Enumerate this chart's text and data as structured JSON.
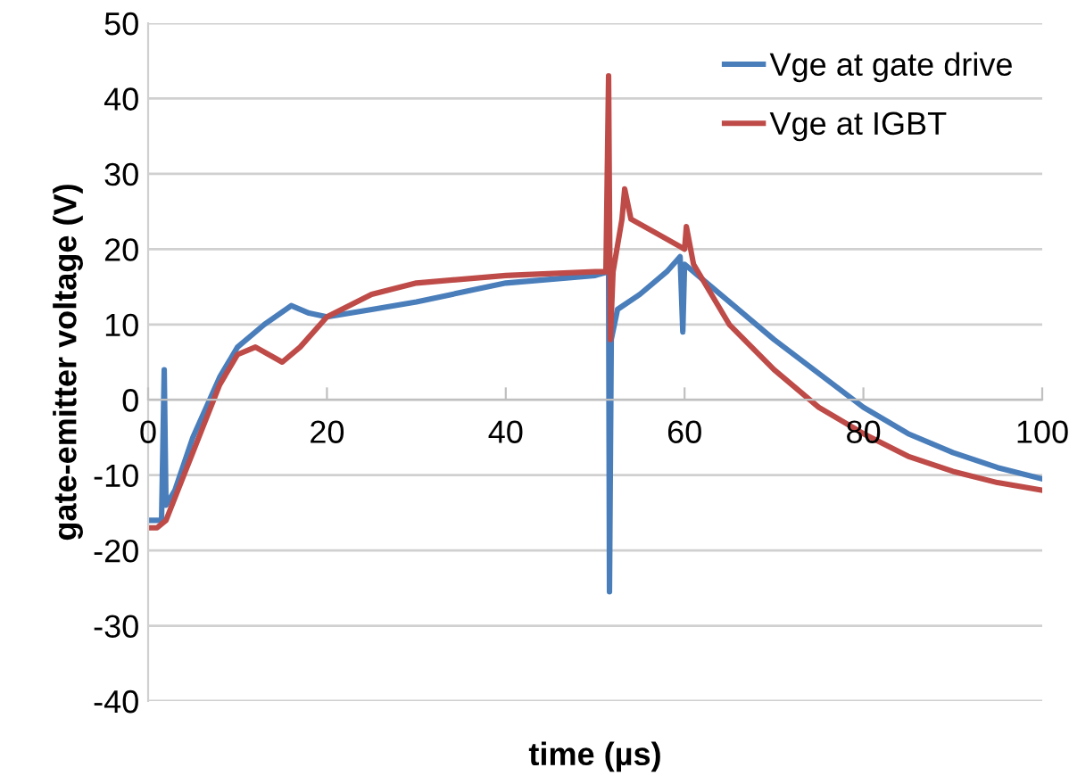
{
  "chart_data": {
    "type": "line",
    "xlabel": "time (µs)",
    "ylabel": "gate-emitter voltage (V)",
    "xlim": [
      0,
      100
    ],
    "xticks": [
      0,
      20,
      40,
      60,
      80,
      100
    ],
    "ylim": [
      -40,
      50
    ],
    "yticks": [
      -40,
      -30,
      -20,
      -10,
      0,
      10,
      20,
      30,
      40,
      50
    ],
    "grid": "y",
    "legend": "top right",
    "marker": "none",
    "line_style": "solid",
    "series": [
      {
        "name": "Vge at gate drive",
        "color": "#4a7ebb",
        "x": [
          0,
          1.5,
          1.8,
          2.0,
          3,
          5,
          8,
          10,
          13,
          16,
          18,
          20,
          25,
          30,
          40,
          50,
          51.5,
          51.6,
          51.8,
          52.5,
          55,
          58,
          59.5,
          59.8,
          60,
          62,
          65,
          70,
          75,
          80,
          85,
          90,
          95,
          100
        ],
        "values": [
          -16,
          -16,
          4,
          -14,
          -12,
          -5,
          3,
          7,
          10,
          12.5,
          11.5,
          11,
          12,
          13,
          15.5,
          16.5,
          17,
          -25.5,
          8,
          12,
          14,
          17,
          19,
          9,
          18,
          16,
          13,
          8,
          3.5,
          -1,
          -4.5,
          -7,
          -9,
          -10.5
        ]
      },
      {
        "name": "Vge at IGBT",
        "color": "#be4b48",
        "x": [
          0,
          1,
          2,
          4,
          6,
          8,
          10,
          12,
          15,
          17,
          20,
          25,
          30,
          40,
          50,
          51.2,
          51.5,
          51.7,
          52,
          53,
          53.3,
          54,
          57,
          60,
          60.2,
          61,
          63,
          65,
          70,
          75,
          80,
          85,
          90,
          95,
          100
        ],
        "values": [
          -17,
          -17,
          -16,
          -10,
          -4,
          2,
          6,
          7,
          5,
          7,
          11,
          14,
          15.5,
          16.5,
          17,
          17,
          43,
          8,
          17,
          24,
          28,
          24,
          22,
          20,
          23,
          18,
          14,
          10,
          4,
          -1,
          -4.5,
          -7.5,
          -9.5,
          -11,
          -12
        ]
      }
    ]
  }
}
